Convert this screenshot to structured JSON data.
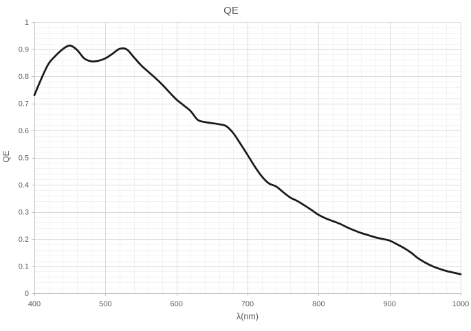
{
  "chart_data": {
    "type": "line",
    "title": "QE",
    "xlabel": "λ(nm)",
    "ylabel": "QE",
    "xlim": [
      400,
      1000
    ],
    "ylim": [
      0,
      1
    ],
    "x_major_ticks": [
      400,
      500,
      600,
      700,
      800,
      900,
      1000
    ],
    "x_tick_labels": [
      "400",
      "500",
      "600",
      "700",
      "800",
      "900",
      "1000"
    ],
    "y_major_ticks": [
      0,
      0.1,
      0.2,
      0.3,
      0.4,
      0.5,
      0.6,
      0.7,
      0.8,
      0.9,
      1
    ],
    "y_tick_labels": [
      "0",
      "0.1",
      "0.2",
      "0.3",
      "0.4",
      "0.5",
      "0.6",
      "0.7",
      "0.8",
      "0.9",
      "1"
    ],
    "x_minor_step": 20,
    "y_minor_step": 0.02,
    "grid": "major and minor, both axes",
    "legend_position": "none",
    "series": [
      {
        "name": "QE",
        "color": "#1a1a1a",
        "x": [
          400,
          410,
          420,
          430,
          440,
          450,
          460,
          470,
          480,
          490,
          500,
          510,
          520,
          530,
          540,
          550,
          560,
          570,
          580,
          590,
          600,
          610,
          620,
          630,
          640,
          650,
          660,
          670,
          680,
          690,
          700,
          710,
          720,
          730,
          740,
          750,
          760,
          770,
          780,
          790,
          800,
          810,
          820,
          830,
          840,
          850,
          860,
          870,
          880,
          890,
          900,
          910,
          920,
          930,
          940,
          950,
          960,
          970,
          980,
          990,
          1000
        ],
        "y": [
          0.73,
          0.792,
          0.846,
          0.876,
          0.9,
          0.913,
          0.897,
          0.866,
          0.855,
          0.857,
          0.866,
          0.883,
          0.901,
          0.899,
          0.87,
          0.841,
          0.817,
          0.794,
          0.769,
          0.741,
          0.714,
          0.693,
          0.671,
          0.639,
          0.631,
          0.627,
          0.623,
          0.616,
          0.59,
          0.551,
          0.51,
          0.468,
          0.431,
          0.405,
          0.394,
          0.373,
          0.353,
          0.34,
          0.324,
          0.307,
          0.289,
          0.276,
          0.266,
          0.256,
          0.243,
          0.232,
          0.222,
          0.214,
          0.206,
          0.2,
          0.194,
          0.181,
          0.167,
          0.15,
          0.129,
          0.113,
          0.1,
          0.09,
          0.082,
          0.076,
          0.07
        ]
      }
    ]
  },
  "colors": {
    "background": "#ffffff",
    "major_grid": "#d9d9d9",
    "minor_grid": "#f2f2f2",
    "axis_line": "#bfbfbf",
    "text": "#595959",
    "line": "#1a1a1a"
  }
}
